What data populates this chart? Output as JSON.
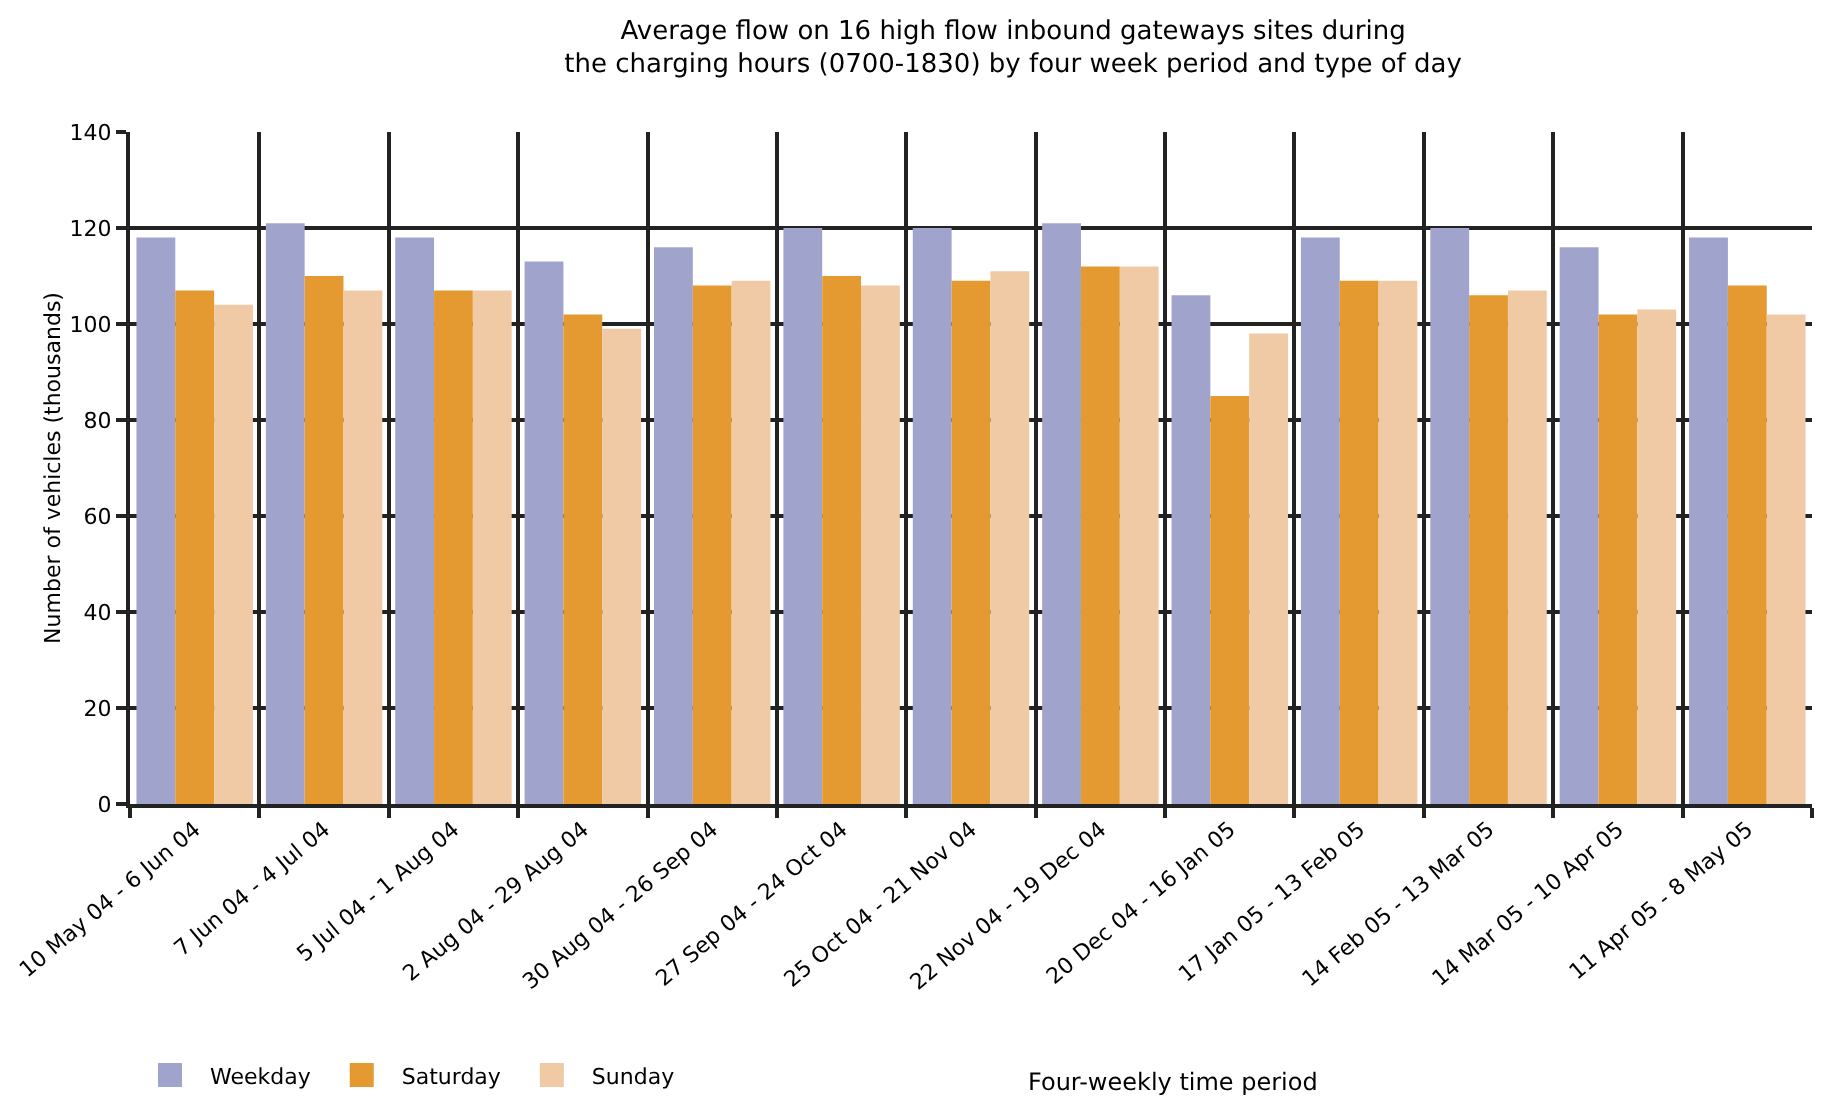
{
  "chart_data": {
    "type": "bar",
    "title": "Average flow on 16 high flow inbound gateways sites during\nthe charging hours (0700-1830) by four week period and type of day",
    "xlabel": "Four-weekly time period",
    "ylabel": "Number of vehicles (thousands)",
    "categories": [
      "10 May 04 - 6 Jun 04",
      "7 Jun 04 - 4 Jul 04",
      "5 Jul 04 - 1 Aug 04",
      "2 Aug 04 - 29 Aug 04",
      "30 Aug 04 - 26 Sep 04",
      "27 Sep 04 - 24 Oct 04",
      "25 Oct 04 - 21 Nov 04",
      "22 Nov 04 - 19 Dec 04",
      "20 Dec 04 - 16 Jan 05",
      "17 Jan 05 - 13 Feb 05",
      "14 Feb 05 - 13 Mar 05",
      "14 Mar 05 - 10 Apr 05",
      "11 Apr 05 - 8 May 05"
    ],
    "series": [
      {
        "name": "Weekday",
        "color": "#a0a3cb",
        "values": [
          118,
          121,
          118,
          113,
          116,
          120,
          120,
          121,
          106,
          118,
          120,
          116,
          118
        ]
      },
      {
        "name": "Saturday",
        "color": "#e49a30",
        "values": [
          107,
          110,
          107,
          102,
          108,
          110,
          109,
          112,
          85,
          109,
          106,
          102,
          108
        ]
      },
      {
        "name": "Sunday",
        "color": "#f0caa4",
        "values": [
          104,
          107,
          107,
          99,
          109,
          108,
          111,
          112,
          98,
          109,
          107,
          103,
          102
        ]
      }
    ],
    "ylim": [
      0,
      140
    ],
    "yticks": [
      0,
      20,
      40,
      60,
      80,
      100,
      120,
      140
    ],
    "grid": true,
    "legend": "bottom left"
  }
}
